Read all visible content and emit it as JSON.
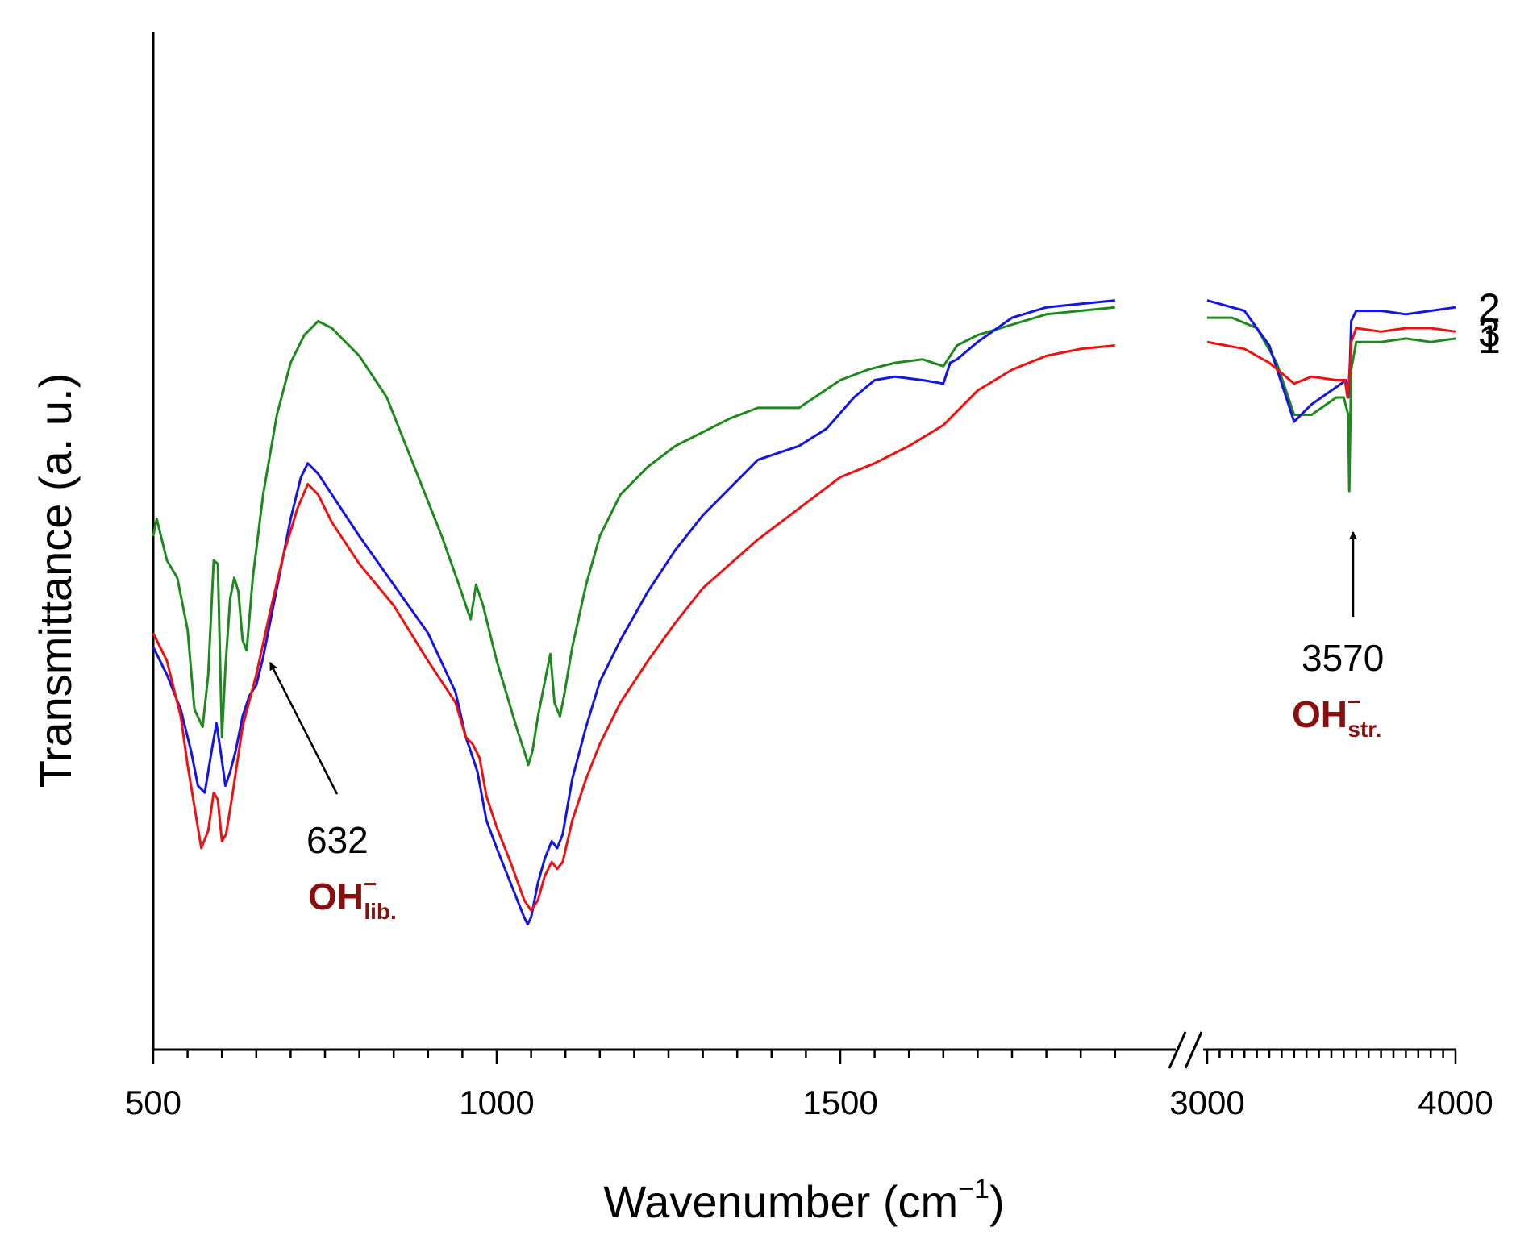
{
  "chart_data": {
    "type": "line",
    "xlabel": "Wavenumber (cm",
    "xlabel_sup": "−1",
    "xlabel_close": ")",
    "ylabel": "Transmittance (a. u.)",
    "x_segments": [
      {
        "range": [
          500,
          1900
        ],
        "ticks": [
          "500",
          "1000",
          "1500"
        ]
      },
      {
        "range": [
          3000,
          4000
        ],
        "ticks": [
          "3000",
          "4000"
        ]
      }
    ],
    "axis_break": "//",
    "series": [
      {
        "name": "1",
        "color": "#1e8a1e",
        "points": [
          [
            500,
            100
          ],
          [
            505,
            105
          ],
          [
            520,
            93
          ],
          [
            535,
            88
          ],
          [
            550,
            73
          ],
          [
            560,
            50
          ],
          [
            572,
            45
          ],
          [
            580,
            60
          ],
          [
            588,
            93
          ],
          [
            594,
            92
          ],
          [
            600,
            42
          ],
          [
            605,
            62
          ],
          [
            612,
            82
          ],
          [
            618,
            88
          ],
          [
            624,
            84
          ],
          [
            630,
            70
          ],
          [
            636,
            67
          ],
          [
            645,
            88
          ],
          [
            660,
            112
          ],
          [
            680,
            135
          ],
          [
            700,
            150
          ],
          [
            720,
            158
          ],
          [
            740,
            162
          ],
          [
            760,
            160
          ],
          [
            800,
            152
          ],
          [
            840,
            140
          ],
          [
            880,
            120
          ],
          [
            920,
            100
          ],
          [
            945,
            86
          ],
          [
            955,
            80
          ],
          [
            962,
            76
          ],
          [
            970,
            86
          ],
          [
            980,
            80
          ],
          [
            990,
            72
          ],
          [
            1000,
            64
          ],
          [
            1015,
            54
          ],
          [
            1030,
            44
          ],
          [
            1040,
            38
          ],
          [
            1046,
            34
          ],
          [
            1052,
            38
          ],
          [
            1060,
            48
          ],
          [
            1070,
            58
          ],
          [
            1078,
            66
          ],
          [
            1084,
            52
          ],
          [
            1092,
            48
          ],
          [
            1098,
            54
          ],
          [
            1110,
            68
          ],
          [
            1130,
            86
          ],
          [
            1150,
            100
          ],
          [
            1180,
            112
          ],
          [
            1220,
            120
          ],
          [
            1260,
            126
          ],
          [
            1300,
            130
          ],
          [
            1340,
            134
          ],
          [
            1380,
            137
          ],
          [
            1440,
            137
          ],
          [
            1470,
            141
          ],
          [
            1500,
            145
          ],
          [
            1540,
            148
          ],
          [
            1580,
            150
          ],
          [
            1620,
            151
          ],
          [
            1650,
            149
          ],
          [
            1670,
            155
          ],
          [
            1700,
            158
          ],
          [
            1750,
            161
          ],
          [
            1800,
            164
          ],
          [
            1850,
            165
          ],
          [
            1900,
            166
          ],
          [
            3000,
            163
          ],
          [
            3100,
            163
          ],
          [
            3200,
            160
          ],
          [
            3280,
            150
          ],
          [
            3350,
            135
          ],
          [
            3420,
            135
          ],
          [
            3520,
            140
          ],
          [
            3550,
            140
          ],
          [
            3568,
            135
          ],
          [
            3572,
            113
          ],
          [
            3580,
            148
          ],
          [
            3600,
            156
          ],
          [
            3700,
            156
          ],
          [
            3800,
            157
          ],
          [
            3900,
            156
          ],
          [
            4000,
            157
          ]
        ]
      },
      {
        "name": "2",
        "color": "#1414e6",
        "points": [
          [
            500,
            68
          ],
          [
            520,
            60
          ],
          [
            540,
            50
          ],
          [
            555,
            38
          ],
          [
            565,
            28
          ],
          [
            575,
            26
          ],
          [
            585,
            38
          ],
          [
            592,
            46
          ],
          [
            598,
            38
          ],
          [
            605,
            28
          ],
          [
            612,
            32
          ],
          [
            620,
            38
          ],
          [
            630,
            48
          ],
          [
            640,
            54
          ],
          [
            650,
            57
          ],
          [
            660,
            65
          ],
          [
            680,
            85
          ],
          [
            700,
            105
          ],
          [
            715,
            117
          ],
          [
            725,
            121
          ],
          [
            740,
            118
          ],
          [
            760,
            112
          ],
          [
            800,
            100
          ],
          [
            850,
            86
          ],
          [
            900,
            72
          ],
          [
            940,
            55
          ],
          [
            955,
            42
          ],
          [
            962,
            38
          ],
          [
            972,
            32
          ],
          [
            985,
            18
          ],
          [
            1000,
            10
          ],
          [
            1020,
            0
          ],
          [
            1040,
            -10
          ],
          [
            1045,
            -12
          ],
          [
            1050,
            -10
          ],
          [
            1060,
            0
          ],
          [
            1070,
            7
          ],
          [
            1080,
            12
          ],
          [
            1088,
            10
          ],
          [
            1096,
            14
          ],
          [
            1110,
            30
          ],
          [
            1130,
            45
          ],
          [
            1150,
            58
          ],
          [
            1180,
            70
          ],
          [
            1220,
            84
          ],
          [
            1260,
            96
          ],
          [
            1300,
            106
          ],
          [
            1340,
            114
          ],
          [
            1380,
            122
          ],
          [
            1440,
            126
          ],
          [
            1480,
            131
          ],
          [
            1520,
            140
          ],
          [
            1550,
            145
          ],
          [
            1580,
            146
          ],
          [
            1620,
            145
          ],
          [
            1650,
            144
          ],
          [
            1660,
            150
          ],
          [
            1670,
            151
          ],
          [
            1700,
            156
          ],
          [
            1750,
            163
          ],
          [
            1800,
            166
          ],
          [
            1850,
            167
          ],
          [
            1900,
            168
          ],
          [
            3000,
            168
          ],
          [
            3150,
            165
          ],
          [
            3250,
            155
          ],
          [
            3350,
            133
          ],
          [
            3420,
            138
          ],
          [
            3520,
            143
          ],
          [
            3560,
            145
          ],
          [
            3568,
            140
          ],
          [
            3575,
            150
          ],
          [
            3580,
            162
          ],
          [
            3600,
            165
          ],
          [
            3700,
            165
          ],
          [
            3800,
            164
          ],
          [
            3900,
            165
          ],
          [
            4000,
            166
          ]
        ]
      },
      {
        "name": "3",
        "color": "#f01010",
        "points": [
          [
            500,
            72
          ],
          [
            520,
            64
          ],
          [
            540,
            48
          ],
          [
            550,
            34
          ],
          [
            560,
            22
          ],
          [
            570,
            10
          ],
          [
            580,
            15
          ],
          [
            588,
            26
          ],
          [
            594,
            24
          ],
          [
            600,
            12
          ],
          [
            606,
            14
          ],
          [
            615,
            25
          ],
          [
            630,
            45
          ],
          [
            650,
            60
          ],
          [
            670,
            78
          ],
          [
            690,
            95
          ],
          [
            710,
            108
          ],
          [
            725,
            115
          ],
          [
            740,
            112
          ],
          [
            760,
            104
          ],
          [
            800,
            92
          ],
          [
            850,
            80
          ],
          [
            900,
            64
          ],
          [
            940,
            52
          ],
          [
            955,
            42
          ],
          [
            965,
            40
          ],
          [
            975,
            36
          ],
          [
            985,
            25
          ],
          [
            1000,
            16
          ],
          [
            1020,
            6
          ],
          [
            1040,
            -5
          ],
          [
            1050,
            -8
          ],
          [
            1060,
            -5
          ],
          [
            1070,
            2
          ],
          [
            1080,
            6
          ],
          [
            1088,
            4
          ],
          [
            1096,
            6
          ],
          [
            1110,
            18
          ],
          [
            1130,
            30
          ],
          [
            1150,
            40
          ],
          [
            1180,
            52
          ],
          [
            1220,
            64
          ],
          [
            1260,
            75
          ],
          [
            1300,
            85
          ],
          [
            1340,
            92
          ],
          [
            1380,
            99
          ],
          [
            1440,
            108
          ],
          [
            1500,
            117
          ],
          [
            1550,
            121
          ],
          [
            1600,
            126
          ],
          [
            1650,
            132
          ],
          [
            1700,
            142
          ],
          [
            1750,
            148
          ],
          [
            1800,
            152
          ],
          [
            1850,
            154
          ],
          [
            1900,
            155
          ],
          [
            3000,
            156
          ],
          [
            3150,
            154
          ],
          [
            3250,
            150
          ],
          [
            3350,
            144
          ],
          [
            3420,
            146
          ],
          [
            3520,
            145
          ],
          [
            3555,
            145
          ],
          [
            3565,
            140
          ],
          [
            3575,
            148
          ],
          [
            3580,
            156
          ],
          [
            3600,
            160
          ],
          [
            3700,
            159
          ],
          [
            3800,
            160
          ],
          [
            3900,
            160
          ],
          [
            4000,
            159
          ]
        ]
      }
    ],
    "annotations": [
      {
        "number": "632",
        "species": "OH",
        "superscript": "−",
        "subscript": "lib."
      },
      {
        "number": "3570",
        "species": "OH",
        "superscript": "−",
        "subscript": "str."
      }
    ]
  }
}
